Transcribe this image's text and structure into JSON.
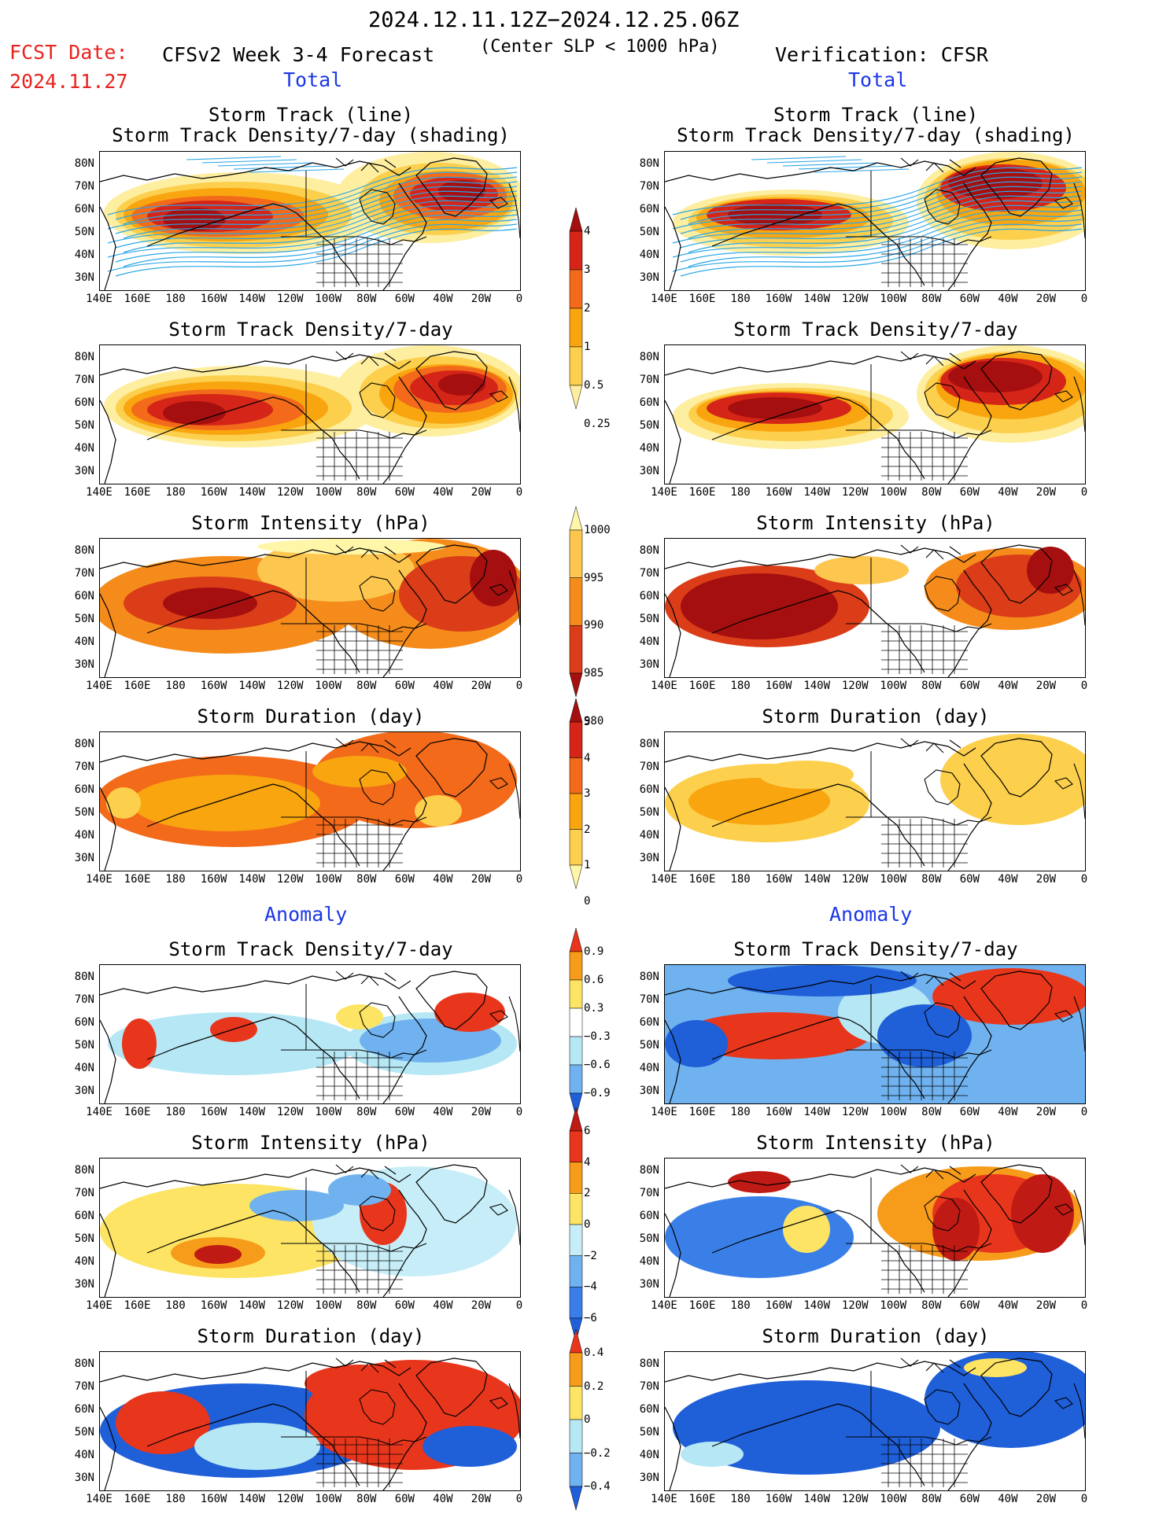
{
  "header": {
    "date_range": "2024.12.11.12Z−2024.12.25.06Z",
    "fcst_label": "FCST Date:",
    "fcst_date": "2024.11.27",
    "model": "CFSv2 Week 3-4 Forecast",
    "criterion": "(Center SLP < 1000 hPa)",
    "verification": "Verification: CFSR",
    "left_section_total": "Total",
    "right_section_total": "Total",
    "left_section_anomaly": "Anomaly",
    "right_section_anomaly": "Anomaly"
  },
  "panel_titles": {
    "track_line": "Storm Track (line)",
    "track_shading": "Storm Track Density/7-day (shading)",
    "density": "Storm Track Density/7-day",
    "intensity": "Storm Intensity (hPa)",
    "duration": "Storm Duration (day)"
  },
  "axes": {
    "lat_labels": [
      "80N",
      "70N",
      "60N",
      "50N",
      "40N",
      "30N"
    ],
    "lon_labels": [
      "140E",
      "160E",
      "180",
      "160W",
      "140W",
      "120W",
      "100W",
      "80W",
      "60W",
      "40W",
      "20W",
      "0"
    ]
  },
  "colorbars": {
    "density_total": {
      "labels": [
        "4",
        "3",
        "2",
        "1",
        "0.5",
        "0.25"
      ],
      "colors": [
        "#a50f0f",
        "#d42518",
        "#f26a1a",
        "#f9a50f",
        "#fccf4d",
        "#feeea0"
      ]
    },
    "intensity_total": {
      "labels": [
        "1000",
        "995",
        "990",
        "985",
        "980"
      ],
      "colors": [
        "#fff6a8",
        "#fcc64f",
        "#f58b1b",
        "#da3d18",
        "#a50f0f"
      ]
    },
    "duration_total": {
      "labels": [
        "5",
        "4",
        "3",
        "2",
        "1",
        "0"
      ],
      "colors": [
        "#a50f0f",
        "#d42518",
        "#f26a1a",
        "#f9a50f",
        "#fccf4d",
        "#fff6a8"
      ]
    },
    "density_anom": {
      "labels": [
        "0.9",
        "0.6",
        "0.3",
        "−0.3",
        "−0.6",
        "−0.9"
      ],
      "colors": [
        "#e8361c",
        "#f79b1a",
        "#fde464",
        "#ffffff",
        "#b6e7f5",
        "#6fb2ef",
        "#1f5fd8"
      ]
    },
    "intensity_anom": {
      "labels": [
        "6",
        "4",
        "2",
        "0",
        "−2",
        "−4",
        "−6"
      ],
      "colors": [
        "#c01a14",
        "#e8361c",
        "#f79b1a",
        "#fde464",
        "#c7eef8",
        "#6fb2ef",
        "#3a7fe8",
        "#1f5fd8"
      ]
    },
    "duration_anom": {
      "labels": [
        "0.4",
        "0.2",
        "0",
        "−0.2",
        "−0.4"
      ],
      "colors": [
        "#e8361c",
        "#f79b1a",
        "#fde464",
        "#b6e7f5",
        "#6fb2ef",
        "#1f5fd8"
      ]
    }
  },
  "colors": {
    "track_line": "#2aa6e8",
    "fcst_red": "#e8231e",
    "section_blue": "#1c37e6"
  }
}
